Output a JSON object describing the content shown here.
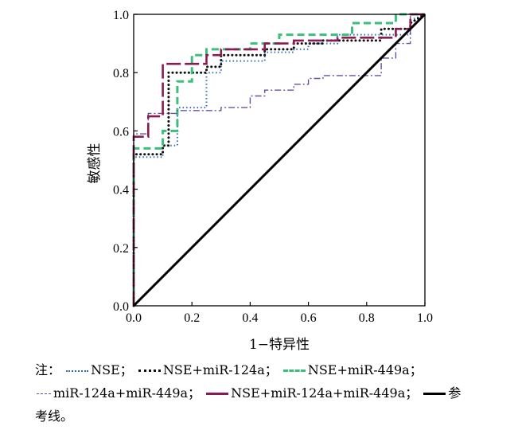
{
  "chart_data": {
    "type": "line",
    "xlabel": "1−特异性",
    "ylabel": "敏感性",
    "xlim": [
      0,
      1
    ],
    "ylim": [
      0,
      1
    ],
    "xticks": [
      "0.0",
      "0.2",
      "0.4",
      "0.6",
      "0.8",
      "1.0"
    ],
    "yticks": [
      "0.0",
      "0.2",
      "0.4",
      "0.6",
      "0.8",
      "1.0"
    ],
    "grid": false,
    "series": [
      {
        "name": "NSE",
        "color": "#2f6db5",
        "dash": "dotted",
        "x": [
          0,
          0,
          0.1,
          0.1,
          0.15,
          0.15,
          0.25,
          0.25,
          0.3,
          0.3,
          0.45,
          0.45,
          0.55,
          0.55,
          0.6,
          0.6,
          0.7,
          0.7,
          0.95,
          0.95,
          1.0
        ],
        "y": [
          0,
          0.51,
          0.51,
          0.55,
          0.55,
          0.68,
          0.68,
          0.8,
          0.8,
          0.84,
          0.84,
          0.87,
          0.87,
          0.88,
          0.88,
          0.9,
          0.9,
          0.93,
          0.93,
          0.98,
          1.0
        ]
      },
      {
        "name": "NSE+miR-124a",
        "color": "#111111",
        "dash": "dotted-heavy",
        "x": [
          0,
          0,
          0.1,
          0.1,
          0.12,
          0.12,
          0.25,
          0.25,
          0.3,
          0.3,
          0.45,
          0.45,
          0.55,
          0.55,
          0.65,
          0.65,
          0.85,
          0.85,
          0.95,
          0.95,
          1.0
        ],
        "y": [
          0,
          0.52,
          0.52,
          0.55,
          0.55,
          0.8,
          0.8,
          0.82,
          0.82,
          0.86,
          0.86,
          0.88,
          0.88,
          0.9,
          0.9,
          0.91,
          0.91,
          0.95,
          0.95,
          0.97,
          1.0
        ]
      },
      {
        "name": "NSE+miR-449a",
        "color": "#3bbf7a",
        "dash": "dashed",
        "x": [
          0,
          0,
          0.1,
          0.1,
          0.15,
          0.15,
          0.2,
          0.2,
          0.25,
          0.25,
          0.4,
          0.4,
          0.5,
          0.5,
          0.75,
          0.75,
          0.9,
          0.9,
          1.0
        ],
        "y": [
          0,
          0.54,
          0.54,
          0.6,
          0.6,
          0.77,
          0.77,
          0.86,
          0.86,
          0.88,
          0.88,
          0.9,
          0.9,
          0.93,
          0.93,
          0.97,
          0.97,
          1.0,
          1.0
        ]
      },
      {
        "name": "miR-124a+miR-449a",
        "color": "#6a4f9a",
        "dash": "dashdot",
        "x": [
          0,
          0,
          0.05,
          0.05,
          0.15,
          0.15,
          0.3,
          0.3,
          0.4,
          0.4,
          0.45,
          0.45,
          0.55,
          0.55,
          0.6,
          0.6,
          0.65,
          0.65,
          0.85,
          0.85,
          0.9,
          0.9,
          0.95,
          0.95,
          1.0
        ],
        "y": [
          0,
          0.59,
          0.59,
          0.66,
          0.66,
          0.67,
          0.67,
          0.68,
          0.68,
          0.72,
          0.72,
          0.74,
          0.74,
          0.76,
          0.76,
          0.78,
          0.78,
          0.79,
          0.79,
          0.85,
          0.85,
          0.9,
          0.9,
          1.0,
          1.0
        ]
      },
      {
        "name": "NSE+miR-124a+miR-449a",
        "color": "#8b1a52",
        "dash": "longdash",
        "x": [
          0,
          0,
          0.05,
          0.05,
          0.1,
          0.1,
          0.2,
          0.2,
          0.25,
          0.25,
          0.3,
          0.3,
          0.45,
          0.45,
          0.55,
          0.55,
          0.7,
          0.7,
          0.9,
          0.9,
          0.95,
          0.95,
          1.0
        ],
        "y": [
          0,
          0.58,
          0.58,
          0.65,
          0.65,
          0.83,
          0.83,
          0.83,
          0.83,
          0.86,
          0.86,
          0.88,
          0.88,
          0.9,
          0.9,
          0.91,
          0.91,
          0.92,
          0.92,
          0.95,
          0.95,
          1.0,
          1.0
        ]
      },
      {
        "name": "参考线",
        "color": "#000000",
        "dash": "solid",
        "x": [
          0,
          1
        ],
        "y": [
          0,
          1
        ]
      }
    ]
  },
  "note": {
    "prefix": "注：",
    "sep": "；",
    "labels": [
      "NSE",
      "NSE+miR-124a",
      "NSE+miR-449a",
      "miR-124a+miR-449a",
      "NSE+miR-124a+miR-449a",
      "参",
      "考线。"
    ]
  }
}
